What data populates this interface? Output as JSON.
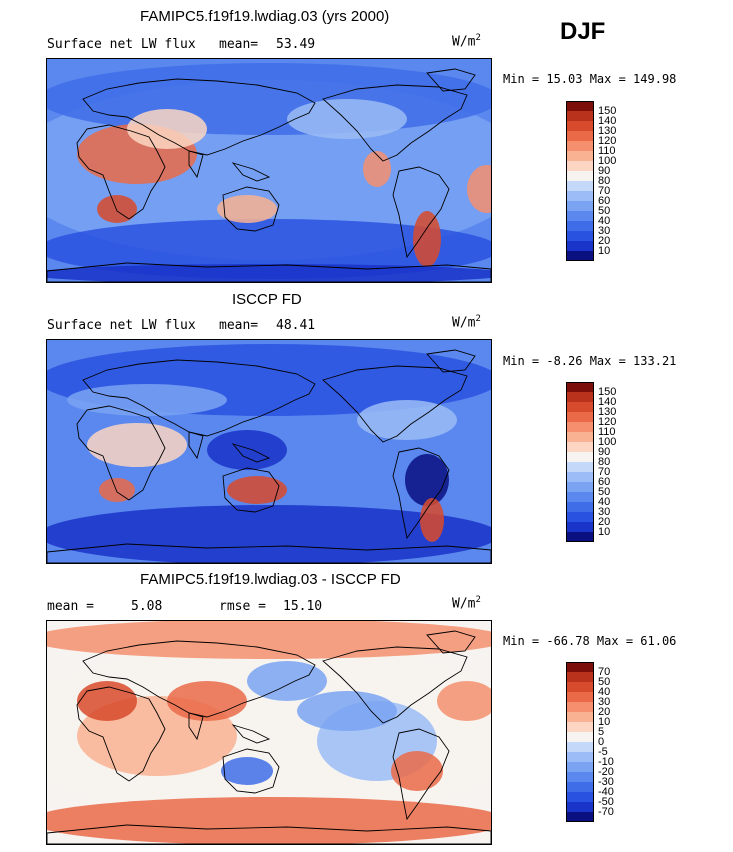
{
  "season": "DJF",
  "colors": {
    "abs_scale": [
      "#0a1080",
      "#1a33c8",
      "#2a52e0",
      "#3f6de8",
      "#5a88ee",
      "#7aa3f2",
      "#9bbcf6",
      "#c4d8fa",
      "#f7f3f0",
      "#fcd6c2",
      "#f9b292",
      "#f58f6e",
      "#ea6a48",
      "#d84a2c",
      "#b8321c",
      "#7c0e0a"
    ],
    "diff_scale": [
      "#0a1080",
      "#1a33c8",
      "#2a52e0",
      "#3f6de8",
      "#5a88ee",
      "#7aa3f2",
      "#9bbcf6",
      "#c4d8fa",
      "#f7f3f0",
      "#fcd6c2",
      "#f9b292",
      "#f58f6e",
      "#ea6a48",
      "#d84a2c",
      "#b8321c",
      "#7c0e0a"
    ]
  },
  "panels": [
    {
      "title": "FAMIPC5.f19f19.lwdiag.03 (yrs 2000)",
      "left_label": "Surface net LW flux",
      "stat_label": "mean=",
      "stat_value": "53.49",
      "stat2_label": "",
      "stat2_value": "",
      "units": "W/m",
      "units_exp": "2",
      "min_text": "Min =  15.03 Max = 149.98",
      "ticks": [
        "150",
        "140",
        "130",
        "120",
        "110",
        "100",
        "90",
        "80",
        "70",
        "60",
        "50",
        "40",
        "30",
        "20",
        "10"
      ],
      "map_type": "model"
    },
    {
      "title": "ISCCP FD",
      "left_label": "Surface net LW flux",
      "stat_label": "mean=",
      "stat_value": "48.41",
      "stat2_label": "",
      "stat2_value": "",
      "units": "W/m",
      "units_exp": "2",
      "min_text": "Min =  -8.26 Max = 133.21",
      "ticks": [
        "150",
        "140",
        "130",
        "120",
        "110",
        "100",
        "90",
        "80",
        "70",
        "60",
        "50",
        "40",
        "30",
        "20",
        "10"
      ],
      "map_type": "obs"
    },
    {
      "title": "FAMIPC5.f19f19.lwdiag.03 - ISCCP FD",
      "left_label": "mean =",
      "stat_label": "",
      "stat_value": "5.08",
      "stat2_label": "rmse =",
      "stat2_value": "15.10",
      "units": "W/m",
      "units_exp": "2",
      "min_text": "Min = -66.78 Max =  61.06",
      "ticks": [
        "70",
        "50",
        "40",
        "30",
        "20",
        "10",
        "5",
        "0",
        "-5",
        "-10",
        "-20",
        "-30",
        "-40",
        "-50",
        "-70"
      ],
      "map_type": "diff"
    }
  ]
}
